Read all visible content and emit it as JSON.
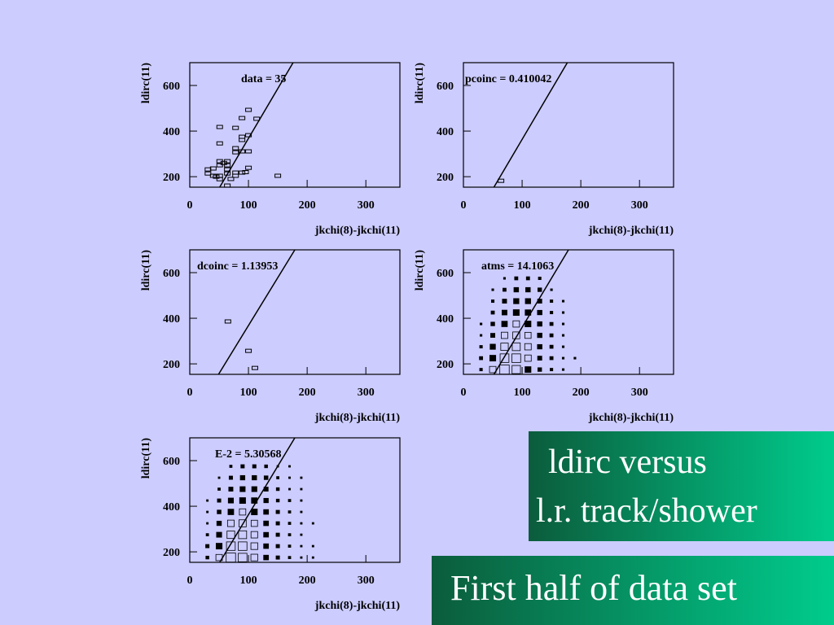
{
  "chart_data": [
    {
      "type": "scatter",
      "annotation": "data = 35",
      "xlabel": "jkchi(8)-jkchi(11)",
      "ylabel": "ldirc(11)",
      "xlim": [
        0,
        358
      ],
      "ylim": [
        154,
        700
      ],
      "xticks": [
        0,
        100,
        200,
        300
      ],
      "yticks": [
        200,
        400,
        600
      ],
      "x": [
        31,
        31,
        40,
        40,
        51,
        51,
        51,
        51,
        51,
        51,
        64,
        64,
        64,
        64,
        64,
        78,
        78,
        78,
        78,
        78,
        89,
        89,
        89,
        89,
        89,
        100,
        100,
        100,
        100,
        114,
        150,
        45,
        58,
        70,
        95
      ],
      "y": [
        232,
        214,
        236,
        204,
        204,
        189,
        418,
        346,
        268,
        250,
        268,
        250,
        232,
        214,
        161,
        414,
        325,
        307,
        218,
        204,
        457,
        375,
        361,
        311,
        218,
        493,
        382,
        311,
        239,
        454,
        204,
        200,
        260,
        190,
        220
      ],
      "fit": {
        "x": [
          51,
          176
        ],
        "y": [
          154,
          700
        ]
      }
    },
    {
      "type": "scatter",
      "annotation": "pcoinc = 0.410042",
      "xlabel": "jkchi(8)-jkchi(11)",
      "ylabel": "ldirc(11)",
      "xlim": [
        0,
        358
      ],
      "ylim": [
        154,
        700
      ],
      "xticks": [
        0,
        100,
        200,
        300
      ],
      "yticks": [
        200,
        400,
        600
      ],
      "x": [
        64
      ],
      "y": [
        182
      ],
      "fit": {
        "x": [
          52,
          177
        ],
        "y": [
          154,
          700
        ]
      }
    },
    {
      "type": "scatter",
      "annotation": "dcoinc = 1.13953",
      "xlabel": "jkchi(8)-jkchi(11)",
      "ylabel": "ldirc(11)",
      "xlim": [
        0,
        358
      ],
      "ylim": [
        154,
        700
      ],
      "xticks": [
        0,
        100,
        200,
        300
      ],
      "yticks": [
        200,
        400,
        600
      ],
      "x": [
        65,
        100,
        111
      ],
      "y": [
        386,
        257,
        182
      ],
      "fit": {
        "x": [
          49,
          179
        ],
        "y": [
          154,
          700
        ]
      }
    },
    {
      "type": "hist2d",
      "annotation": "atms = 14.1063",
      "xlabel": "jkchi(8)-jkchi(11)",
      "ylabel": "ldirc(11)",
      "xlim": [
        0,
        358
      ],
      "ylim": [
        154,
        700
      ],
      "xticks": [
        0,
        100,
        200,
        300
      ],
      "yticks": [
        200,
        400,
        600
      ],
      "xbins": [
        20,
        40,
        60,
        80,
        100,
        120,
        140,
        160,
        180,
        200
      ],
      "ybins": [
        150,
        200,
        250,
        300,
        350,
        400,
        450,
        500,
        550,
        600
      ],
      "counts": [
        [
          2,
          12,
          25,
          20,
          10,
          4,
          2,
          1,
          0
        ],
        [
          3,
          10,
          22,
          22,
          12,
          5,
          3,
          1,
          1
        ],
        [
          2,
          8,
          16,
          18,
          12,
          6,
          3,
          1,
          0
        ],
        [
          1,
          5,
          12,
          14,
          11,
          6,
          3,
          1,
          0
        ],
        [
          1,
          4,
          9,
          12,
          10,
          6,
          3,
          1,
          0
        ],
        [
          0,
          3,
          7,
          10,
          9,
          6,
          2,
          1,
          0
        ],
        [
          0,
          2,
          5,
          8,
          8,
          5,
          2,
          1,
          0
        ],
        [
          0,
          1,
          3,
          6,
          6,
          4,
          1,
          0,
          0
        ],
        [
          0,
          0,
          1,
          3,
          3,
          2,
          0,
          0,
          0
        ]
      ],
      "fit": {
        "x": [
          52,
          179
        ],
        "y": [
          154,
          700
        ]
      }
    },
    {
      "type": "hist2d",
      "annotation": "E-2 = 5.30568",
      "xlabel": "jkchi(8)-jkchi(11)",
      "ylabel": "ldirc(11)",
      "xlim": [
        0,
        358
      ],
      "ylim": [
        154,
        700
      ],
      "xticks": [
        0,
        100,
        200,
        300
      ],
      "yticks": [
        200,
        400,
        600
      ],
      "xbins": [
        20,
        40,
        60,
        80,
        100,
        120,
        140,
        160,
        180,
        200,
        220
      ],
      "ybins": [
        150,
        200,
        250,
        300,
        350,
        400,
        450,
        500,
        550,
        600
      ],
      "counts": [
        [
          3,
          14,
          30,
          26,
          16,
          8,
          4,
          2,
          1,
          1
        ],
        [
          4,
          12,
          26,
          26,
          16,
          8,
          4,
          2,
          1,
          1
        ],
        [
          2,
          9,
          20,
          22,
          15,
          8,
          4,
          2,
          1,
          0
        ],
        [
          1,
          7,
          15,
          18,
          14,
          8,
          4,
          2,
          1,
          1
        ],
        [
          1,
          5,
          11,
          14,
          12,
          8,
          4,
          2,
          1,
          0
        ],
        [
          1,
          4,
          9,
          12,
          11,
          7,
          3,
          2,
          1,
          0
        ],
        [
          0,
          2,
          6,
          9,
          9,
          6,
          3,
          1,
          1,
          0
        ],
        [
          0,
          1,
          4,
          7,
          7,
          5,
          2,
          1,
          1,
          0
        ],
        [
          0,
          0,
          2,
          4,
          4,
          3,
          1,
          1,
          0,
          0
        ]
      ],
      "fit": {
        "x": [
          51,
          179
        ],
        "y": [
          154,
          700
        ]
      }
    }
  ],
  "captions": {
    "box1": [
      "ldirc versus",
      "l.r. track/shower"
    ],
    "box2": "First half of data set"
  }
}
